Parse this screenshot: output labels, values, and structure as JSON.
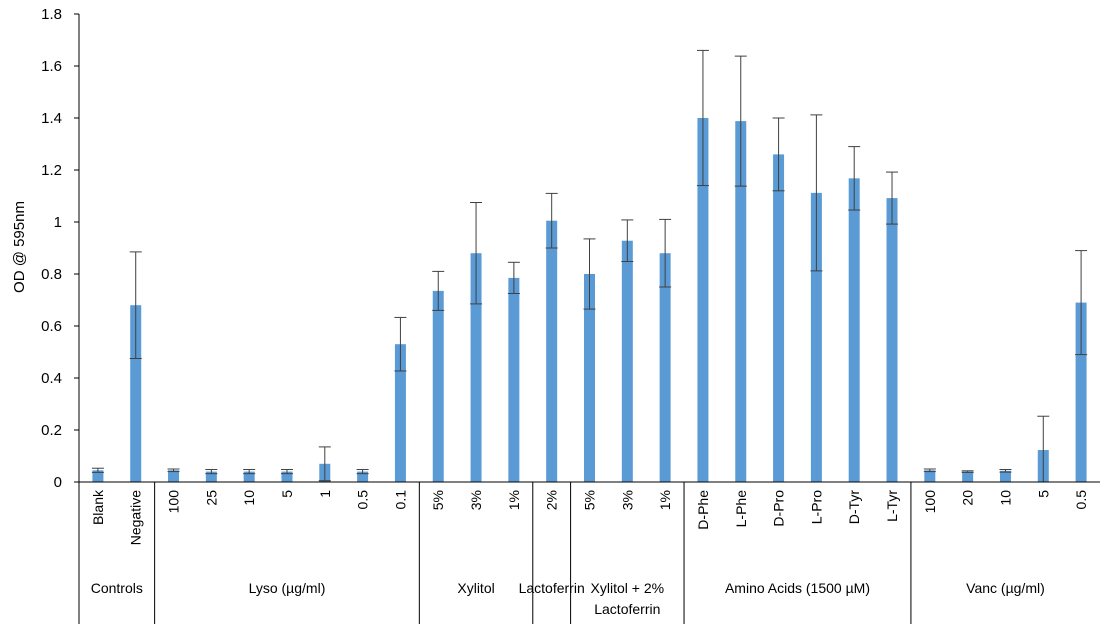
{
  "chart_data": {
    "type": "bar",
    "title": "",
    "ylabel": "OD @ 595nm",
    "ylim": [
      0,
      1.8
    ],
    "yticks": [
      0,
      0.2,
      0.4,
      0.6,
      0.8,
      1,
      1.2,
      1.4,
      1.6,
      1.8
    ],
    "ytick_labels": [
      "0",
      "0.2",
      "0.4",
      "0.6",
      "0.8",
      "1",
      "1.2",
      "1.4",
      "1.6",
      "1.8"
    ],
    "grid": false,
    "legend": "none",
    "bar_color": "#5b9bd5",
    "groups": [
      {
        "name": "Controls",
        "categories": [
          "Blank",
          "Negative"
        ],
        "values": [
          0.045,
          0.68
        ],
        "errors": [
          0.008,
          0.205
        ]
      },
      {
        "name": "Lyso (µg/ml)",
        "categories": [
          "100",
          "25",
          "10",
          "5",
          "1",
          "0.5",
          "0.1"
        ],
        "values": [
          0.045,
          0.04,
          0.04,
          0.04,
          0.07,
          0.04,
          0.53
        ],
        "errors": [
          0.005,
          0.008,
          0.008,
          0.008,
          0.065,
          0.008,
          0.103
        ]
      },
      {
        "name": "Xylitol",
        "categories": [
          "5%",
          "3%",
          "1%"
        ],
        "values": [
          0.735,
          0.88,
          0.785
        ],
        "errors": [
          0.075,
          0.195,
          0.06
        ]
      },
      {
        "name": "Lactoferrin",
        "categories": [
          "2%"
        ],
        "values": [
          1.005
        ],
        "errors": [
          0.105
        ]
      },
      {
        "name": "Xylitol + 2% Lactoferrin",
        "name_lines": [
          "Xylitol + 2%",
          "Lactoferrin"
        ],
        "categories": [
          "5%",
          "3%",
          "1%"
        ],
        "values": [
          0.8,
          0.928,
          0.88
        ],
        "errors": [
          0.135,
          0.08,
          0.13
        ]
      },
      {
        "name": "Amino Acids (1500 µM)",
        "categories": [
          "D-Phe",
          "L-Phe",
          "D-Pro",
          "L-Pro",
          "D-Tyr",
          "L-Tyr"
        ],
        "values": [
          1.4,
          1.388,
          1.26,
          1.112,
          1.168,
          1.092
        ],
        "errors": [
          0.26,
          0.25,
          0.14,
          0.3,
          0.122,
          0.1
        ]
      },
      {
        "name": "Vanc (µg/ml)",
        "categories": [
          "100",
          "20",
          "10",
          "5",
          "0.5"
        ],
        "values": [
          0.045,
          0.04,
          0.043,
          0.123,
          0.69
        ],
        "errors": [
          0.005,
          0.003,
          0.005,
          0.13,
          0.2
        ]
      }
    ]
  }
}
